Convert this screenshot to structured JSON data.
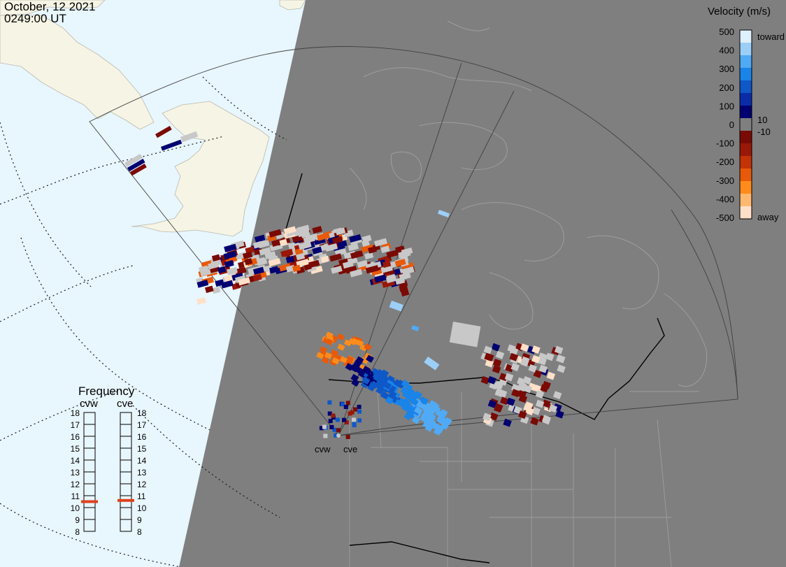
{
  "header": {
    "date": "October, 12 2021",
    "time": "0249:00 UT"
  },
  "colors": {
    "night": "#7f7f7f",
    "day_ocean": "#e8f6fd",
    "day_land": "#f6f4e4",
    "fov_line": "#404040",
    "border": "#000000",
    "ground_scatter": "#c8c8c8",
    "frequency_marker": "#e0401a"
  },
  "radars": {
    "west_label": "cvw",
    "east_label": "cve"
  },
  "velocity_legend": {
    "title": "Velocity (m/s)",
    "ticks": [
      "500",
      "400",
      "300",
      "200",
      "100",
      "0",
      "-100",
      "-200",
      "-300",
      "-400",
      "-500"
    ],
    "inner_upper": "10",
    "inner_lower": "-10",
    "toward_label": "toward",
    "away_label": "away",
    "scale_colors": [
      "#ffe0c8",
      "#ffb870",
      "#ff8c1a",
      "#e85a0a",
      "#c43208",
      "#9a1808",
      "#7a0a04",
      "#7f7f7f",
      "#000070",
      "#0a2ca8",
      "#0e58c8",
      "#1a84e8",
      "#50aaf5",
      "#9ccff8",
      "#dff1fd"
    ]
  },
  "frequency_panel": {
    "title": "Frequency",
    "west_label": "cvw",
    "east_label": "cve",
    "scale": [
      "18",
      "17",
      "16",
      "15",
      "14",
      "13",
      "12",
      "11",
      "10",
      "9",
      "8"
    ],
    "west_value_mhz": 10.5,
    "east_value_mhz": 10.6
  }
}
